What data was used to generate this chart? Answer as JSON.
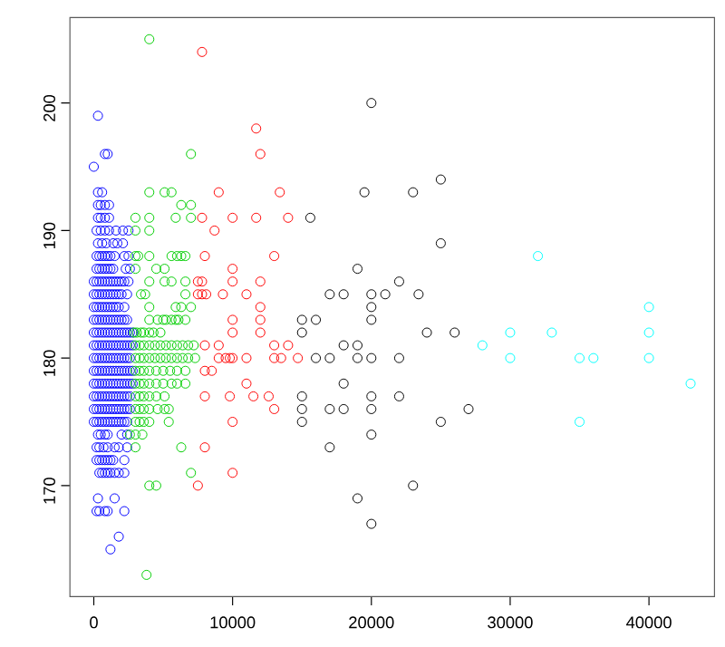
{
  "chart_data": {
    "type": "scatter",
    "marker": "circle",
    "xlim": [
      -1720,
      44720
    ],
    "ylim": [
      161.3,
      206.7
    ],
    "xticks": [
      0,
      10000,
      20000,
      30000,
      40000
    ],
    "yticks": [
      170,
      180,
      190,
      200
    ],
    "series": [
      {
        "color": "#0000ff",
        "x": [
          300,
          800,
          1000,
          0,
          300,
          600,
          300,
          500,
          800,
          1100,
          300,
          500,
          800,
          1100,
          200,
          500,
          800,
          1100,
          1600,
          2100,
          2500,
          300,
          600,
          900,
          1400,
          1700,
          2100,
          200,
          400,
          600,
          800,
          1000,
          1200,
          1500,
          2200,
          2500,
          200,
          400,
          600,
          800,
          1000,
          1200,
          1400,
          2300,
          2600,
          0,
          200,
          400,
          600,
          800,
          1000,
          1200,
          1400,
          1600,
          1800,
          2000,
          2200,
          2500,
          0,
          200,
          400,
          600,
          800,
          1000,
          1200,
          1400,
          1600,
          1800,
          2000,
          2400,
          0,
          200,
          400,
          600,
          800,
          1000,
          1200,
          1400,
          1600,
          1800,
          2200,
          0,
          200,
          400,
          600,
          800,
          1000,
          1200,
          1400,
          1600,
          1800,
          2000,
          2200,
          2400,
          0,
          200,
          400,
          600,
          800,
          1000,
          1200,
          1400,
          1600,
          1800,
          2000,
          2200,
          2400,
          2600,
          2800,
          0,
          200,
          400,
          600,
          800,
          1000,
          1200,
          1400,
          1600,
          1800,
          2000,
          2200,
          2400,
          2600,
          2800,
          0,
          200,
          400,
          600,
          800,
          1000,
          1200,
          1400,
          1600,
          1800,
          2000,
          2200,
          2400,
          2600,
          0,
          200,
          400,
          600,
          800,
          1000,
          1200,
          1400,
          1600,
          1800,
          2000,
          2200,
          2400,
          2600,
          2800,
          0,
          200,
          400,
          600,
          800,
          1000,
          1200,
          1400,
          1600,
          1800,
          2000,
          2200,
          2400,
          2600,
          2800,
          0,
          200,
          400,
          600,
          800,
          1000,
          1200,
          1400,
          1600,
          1800,
          2000,
          2200,
          2400,
          2600,
          0,
          200,
          400,
          600,
          800,
          1000,
          1200,
          1400,
          1600,
          1800,
          2000,
          2200,
          2400,
          2600,
          0,
          200,
          400,
          600,
          800,
          1000,
          1200,
          1400,
          1600,
          1800,
          2000,
          2200,
          2400,
          300,
          500,
          800,
          1000,
          2000,
          2400,
          200,
          400,
          700,
          1000,
          1500,
          1800,
          2400,
          200,
          400,
          600,
          800,
          1000,
          1200,
          1400,
          2200,
          400,
          600,
          800,
          1000,
          1200,
          1500,
          1800,
          2200,
          300,
          1500,
          200,
          400,
          800,
          1000,
          2200,
          1800,
          1200
        ],
        "values": [
          199,
          196,
          196,
          195,
          193,
          193,
          192,
          192,
          192,
          192,
          191,
          191,
          191,
          191,
          190,
          190,
          190,
          190,
          190,
          190,
          190,
          189,
          189,
          189,
          189,
          189,
          189,
          188,
          188,
          188,
          188,
          188,
          188,
          188,
          188,
          188,
          187,
          187,
          187,
          187,
          187,
          187,
          187,
          187,
          187,
          186,
          186,
          186,
          186,
          186,
          186,
          186,
          186,
          186,
          186,
          186,
          186,
          186,
          185,
          185,
          185,
          185,
          185,
          185,
          185,
          185,
          185,
          185,
          185,
          185,
          184,
          184,
          184,
          184,
          184,
          184,
          184,
          184,
          184,
          184,
          184,
          183,
          183,
          183,
          183,
          183,
          183,
          183,
          183,
          183,
          183,
          183,
          183,
          183,
          182,
          182,
          182,
          182,
          182,
          182,
          182,
          182,
          182,
          182,
          182,
          182,
          182,
          182,
          182,
          181,
          181,
          181,
          181,
          181,
          181,
          181,
          181,
          181,
          181,
          181,
          181,
          181,
          181,
          181,
          180,
          180,
          180,
          180,
          180,
          180,
          180,
          180,
          180,
          180,
          180,
          180,
          180,
          180,
          179,
          179,
          179,
          179,
          179,
          179,
          179,
          179,
          179,
          179,
          179,
          179,
          179,
          179,
          179,
          178,
          178,
          178,
          178,
          178,
          178,
          178,
          178,
          178,
          178,
          178,
          178,
          178,
          178,
          178,
          177,
          177,
          177,
          177,
          177,
          177,
          177,
          177,
          177,
          177,
          177,
          177,
          177,
          177,
          176,
          176,
          176,
          176,
          176,
          176,
          176,
          176,
          176,
          176,
          176,
          176,
          176,
          176,
          175,
          175,
          175,
          175,
          175,
          175,
          175,
          175,
          175,
          175,
          175,
          175,
          175,
          174,
          174,
          174,
          174,
          174,
          174,
          173,
          173,
          173,
          173,
          173,
          173,
          173,
          172,
          172,
          172,
          172,
          172,
          172,
          172,
          172,
          171,
          171,
          171,
          171,
          171,
          171,
          171,
          171,
          169,
          169,
          168,
          168,
          168,
          168,
          168,
          166,
          165
        ]
      },
      {
        "color": "#00cd00",
        "x": [
          4000,
          7000,
          4000,
          5100,
          5600,
          6300,
          7000,
          3000,
          4000,
          5900,
          7000,
          3000,
          4000,
          3000,
          3200,
          4000,
          5600,
          6000,
          6300,
          6600,
          3000,
          4500,
          5100,
          4000,
          5100,
          5600,
          6600,
          3400,
          3700,
          6600,
          4000,
          5900,
          6300,
          7000,
          4000,
          4600,
          5000,
          5200,
          5600,
          5900,
          6100,
          6600,
          2900,
          3100,
          3400,
          3600,
          4000,
          4300,
          4800,
          3000,
          3300,
          3600,
          4000,
          4400,
          4800,
          5200,
          5600,
          6000,
          6400,
          6800,
          7200,
          3000,
          3300,
          3600,
          4000,
          4400,
          4800,
          5200,
          5600,
          6000,
          6400,
          6800,
          7300,
          3000,
          3300,
          3600,
          4000,
          4500,
          5000,
          5500,
          6000,
          6600,
          3000,
          3300,
          3600,
          4000,
          4500,
          5000,
          5600,
          6000,
          6600,
          3000,
          3300,
          3600,
          4000,
          4500,
          5100,
          3000,
          3300,
          3600,
          4000,
          4600,
          5100,
          5400,
          3000,
          3300,
          3600,
          4000,
          5400,
          2600,
          3000,
          3500,
          3000,
          6300,
          7000,
          4000,
          4500,
          3800
        ],
        "values": [
          205,
          196,
          193,
          193,
          193,
          192,
          192,
          191,
          191,
          191,
          191,
          190,
          190,
          188,
          188,
          188,
          188,
          188,
          188,
          188,
          187,
          187,
          187,
          186,
          186,
          186,
          186,
          185,
          185,
          185,
          184,
          184,
          184,
          184,
          183,
          183,
          183,
          183,
          183,
          183,
          183,
          183,
          182,
          182,
          182,
          182,
          182,
          182,
          182,
          181,
          181,
          181,
          181,
          181,
          181,
          181,
          181,
          181,
          181,
          181,
          181,
          180,
          180,
          180,
          180,
          180,
          180,
          180,
          180,
          180,
          180,
          180,
          180,
          179,
          179,
          179,
          179,
          179,
          179,
          179,
          179,
          179,
          178,
          178,
          178,
          178,
          178,
          178,
          178,
          178,
          178,
          177,
          177,
          177,
          177,
          177,
          177,
          176,
          176,
          176,
          176,
          176,
          176,
          176,
          175,
          175,
          175,
          175,
          175,
          174,
          174,
          174,
          173,
          173,
          171,
          170,
          170,
          163
        ]
      },
      {
        "color": "#ff0000",
        "x": [
          7800,
          11700,
          12000,
          9000,
          13400,
          7800,
          10000,
          11700,
          14000,
          8700,
          8000,
          13000,
          10000,
          7500,
          7800,
          10000,
          12000,
          7500,
          7800,
          8100,
          9300,
          11000,
          12000,
          10000,
          12000,
          10000,
          12000,
          8000,
          9000,
          13000,
          14000,
          9000,
          9500,
          9800,
          10000,
          11000,
          13000,
          13500,
          14700,
          8000,
          8500,
          11000,
          8000,
          9800,
          11500,
          12600,
          13000,
          10000,
          8000,
          10000,
          7500
        ],
        "values": [
          204,
          198,
          196,
          193,
          193,
          191,
          191,
          191,
          191,
          190,
          188,
          188,
          187,
          186,
          186,
          186,
          186,
          185,
          185,
          185,
          185,
          185,
          184,
          183,
          183,
          182,
          182,
          181,
          181,
          181,
          181,
          180,
          180,
          180,
          180,
          180,
          180,
          180,
          180,
          179,
          179,
          178,
          177,
          177,
          177,
          177,
          176,
          175,
          173,
          171,
          170
        ]
      },
      {
        "color": "#000000",
        "x": [
          20000,
          25000,
          19500,
          23000,
          15600,
          25000,
          19000,
          22000,
          17000,
          18000,
          20000,
          21000,
          23400,
          20000,
          15000,
          16000,
          20000,
          15000,
          24000,
          26000,
          18000,
          19000,
          16000,
          17000,
          19000,
          20000,
          22000,
          18000,
          15000,
          20000,
          22000,
          15000,
          17000,
          18000,
          20000,
          27000,
          15000,
          25000,
          20000,
          17000,
          23000,
          19000,
          20000
        ],
        "values": [
          200,
          194,
          193,
          193,
          191,
          189,
          187,
          186,
          185,
          185,
          185,
          185,
          185,
          184,
          183,
          183,
          183,
          182,
          182,
          182,
          181,
          181,
          180,
          180,
          180,
          180,
          180,
          178,
          177,
          177,
          177,
          176,
          176,
          176,
          176,
          176,
          175,
          175,
          174,
          173,
          170,
          169,
          167
        ]
      },
      {
        "color": "#00ffff",
        "x": [
          32000,
          40000,
          30000,
          33000,
          40000,
          28000,
          30000,
          35000,
          36000,
          40000,
          43000,
          35000
        ],
        "values": [
          188,
          184,
          182,
          182,
          182,
          181,
          180,
          180,
          180,
          180,
          178,
          175
        ]
      }
    ]
  }
}
